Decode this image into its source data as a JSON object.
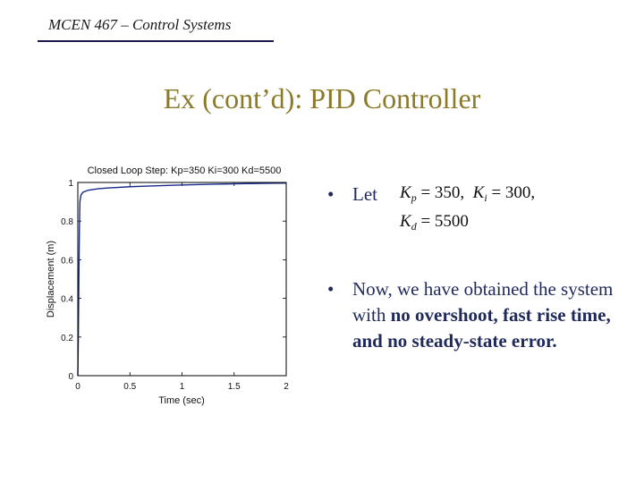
{
  "header": {
    "course": "MCEN 467 – Control Systems",
    "title": "Ex (cont’d): PID Controller"
  },
  "bullets": {
    "let_label": "Let",
    "kp_sym": "K",
    "kp_sub": "p",
    "kp_val": "= 350,",
    "ki_sym": "K",
    "ki_sub": "i",
    "ki_val": "= 300,",
    "kd_sym": "K",
    "kd_sub": "d",
    "kd_val": "= 5500",
    "result_plain": "Now, we have obtained the system with",
    "result_bold": "no overshoot, fast rise time, and no steady-state error."
  },
  "chart_data": {
    "type": "line",
    "title": "Closed Loop Step: Kp=350 Ki=300 Kd=5500",
    "xlabel": "Time (sec)",
    "ylabel": "Displacement (m)",
    "xlim": [
      0,
      2
    ],
    "ylim": [
      0,
      1
    ],
    "xticks": [
      "0",
      "0.5",
      "1",
      "1.5",
      "2"
    ],
    "yticks": [
      "0",
      "0.2",
      "0.4",
      "0.6",
      "0.8",
      "1"
    ],
    "reference_line": 1,
    "series": [
      {
        "x": [
          0,
          0.005,
          0.01,
          0.015,
          0.02,
          0.03,
          0.05,
          0.1,
          0.2,
          0.3,
          0.5,
          0.7,
          1.0,
          1.3,
          1.6,
          2.0
        ],
        "y": [
          0,
          0.2,
          0.5,
          0.75,
          0.9,
          0.935,
          0.95,
          0.96,
          0.968,
          0.972,
          0.978,
          0.982,
          0.987,
          0.991,
          0.994,
          0.997
        ]
      }
    ]
  }
}
